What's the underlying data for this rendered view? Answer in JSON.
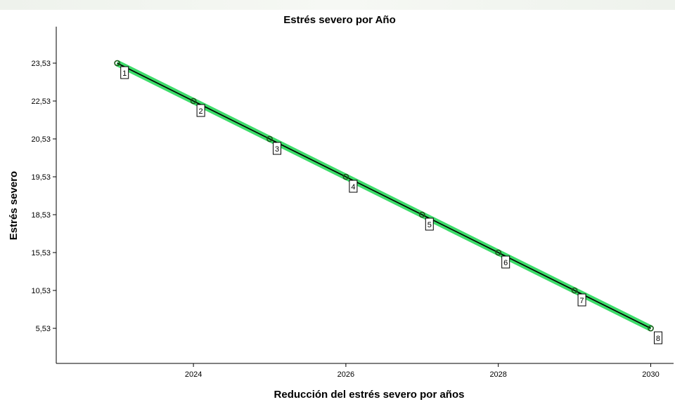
{
  "chart_data": {
    "type": "line",
    "title": "Estrés severo por Año",
    "xlabel": "Reducción del estrés severo por años",
    "ylabel": "Estrés severo",
    "x_ticks": [
      "2024",
      "2026",
      "2028",
      "2030"
    ],
    "y_ticks": [
      "5,53",
      "10,53",
      "15,53",
      "18,53",
      "19,53",
      "20,53",
      "22,53",
      "23,53"
    ],
    "points": [
      {
        "x": 2023,
        "y": "23,53",
        "label": "1"
      },
      {
        "x": 2024,
        "y": "22,53",
        "label": "2"
      },
      {
        "x": 2025,
        "y": "20,53",
        "label": "3"
      },
      {
        "x": 2026,
        "y": "19,53",
        "label": "4"
      },
      {
        "x": 2027,
        "y": "18,53",
        "label": "5"
      },
      {
        "x": 2028,
        "y": "15,53",
        "label": "6"
      },
      {
        "x": 2029,
        "y": "10,53",
        "label": "7"
      },
      {
        "x": 2030,
        "y": "5,53",
        "label": "8"
      }
    ],
    "xlim": [
      2022.2,
      2030.3
    ],
    "grid": false,
    "colors": {
      "line": "#000000",
      "fit_line": "#3ddc6a",
      "marker": "#1a5a1a"
    }
  }
}
